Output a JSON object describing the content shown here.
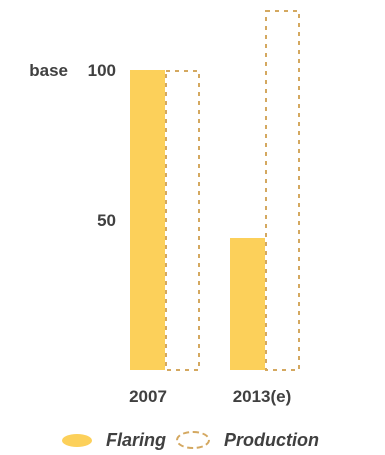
{
  "chart_data": {
    "type": "bar",
    "categories": [
      "2007",
      "2013(e)"
    ],
    "series": [
      {
        "name": "Flaring",
        "values": [
          100,
          44
        ],
        "color": "#fcd05a",
        "style": "filled"
      },
      {
        "name": "Production",
        "values": [
          100,
          120
        ],
        "color": "#d4a860",
        "style": "dashed-outline"
      }
    ],
    "y_tick_labels": [
      {
        "value": 100,
        "label": "100"
      },
      {
        "value": 50,
        "label": "50"
      }
    ],
    "base_label": "base",
    "ylim": [
      0,
      120
    ],
    "grid": false,
    "legend": {
      "position": "bottom",
      "items": [
        "Flaring",
        "Production"
      ]
    },
    "title": "",
    "xlabel": "",
    "ylabel": ""
  }
}
